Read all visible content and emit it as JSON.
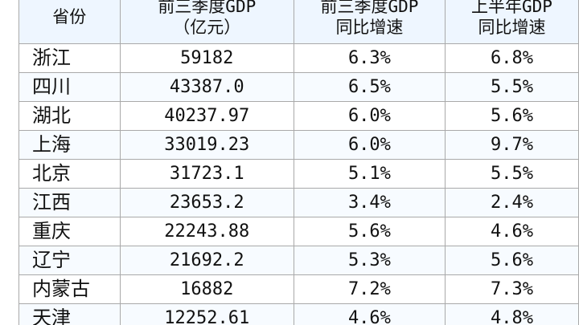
{
  "table": {
    "headers": [
      {
        "lines": [
          "省份"
        ]
      },
      {
        "lines": [
          "前三季度GDP",
          "（亿元）"
        ]
      },
      {
        "lines": [
          "前三季度GDP",
          "同比增速"
        ]
      },
      {
        "lines": [
          "上半年GDP",
          "同比增速"
        ]
      }
    ],
    "rows": [
      {
        "province": "浙江",
        "gdp": "59182",
        "q3_growth": "6.3%",
        "h1_growth": "6.8%"
      },
      {
        "province": "四川",
        "gdp": "43387.0",
        "q3_growth": "6.5%",
        "h1_growth": "5.5%"
      },
      {
        "province": "湖北",
        "gdp": "40237.97",
        "q3_growth": "6.0%",
        "h1_growth": "5.6%"
      },
      {
        "province": "上海",
        "gdp": "33019.23",
        "q3_growth": "6.0%",
        "h1_growth": "9.7%"
      },
      {
        "province": "北京",
        "gdp": "31723.1",
        "q3_growth": "5.1%",
        "h1_growth": "5.5%"
      },
      {
        "province": "江西",
        "gdp": "23653.2",
        "q3_growth": "3.4%",
        "h1_growth": "2.4%"
      },
      {
        "province": "重庆",
        "gdp": "22243.88",
        "q3_growth": "5.6%",
        "h1_growth": "4.6%"
      },
      {
        "province": "辽宁",
        "gdp": "21692.2",
        "q3_growth": "5.3%",
        "h1_growth": "5.6%"
      },
      {
        "province": "内蒙古",
        "gdp": "16882",
        "q3_growth": "7.2%",
        "h1_growth": "7.3%"
      },
      {
        "province": "天津",
        "gdp": "12252.61",
        "q3_growth": "4.6%",
        "h1_growth": "4.8%"
      }
    ]
  }
}
